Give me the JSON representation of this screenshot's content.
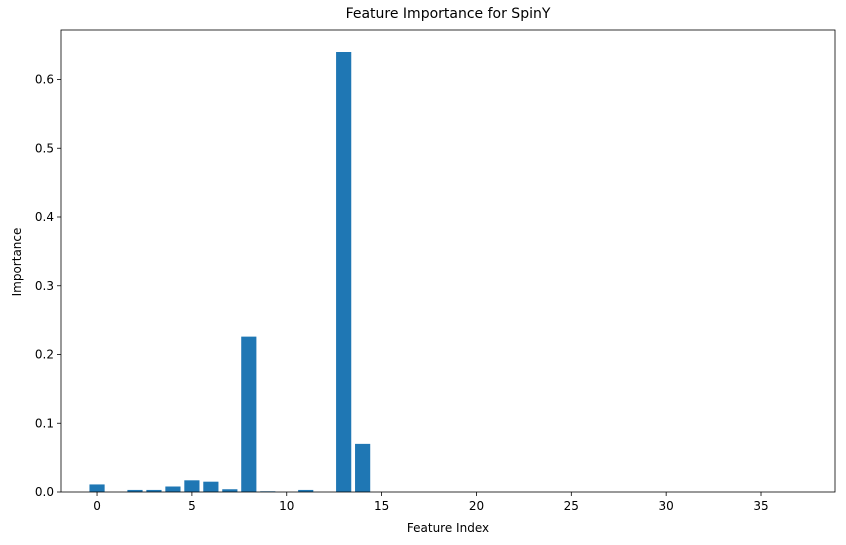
{
  "chart_data": {
    "type": "bar",
    "title": "Feature Importance for SpinY",
    "xlabel": "Feature Index",
    "ylabel": "Importance",
    "x": [
      0,
      1,
      2,
      3,
      4,
      5,
      6,
      7,
      8,
      9,
      10,
      11,
      12,
      13,
      14,
      15,
      16,
      17,
      18,
      19,
      20,
      21,
      22,
      23,
      24,
      25,
      26,
      27,
      28,
      29,
      30,
      31,
      32,
      33,
      34,
      35,
      36,
      37
    ],
    "values": [
      0.011,
      0.0,
      0.003,
      0.003,
      0.008,
      0.017,
      0.015,
      0.004,
      0.226,
      0.001,
      0.0,
      0.003,
      0.0,
      0.64,
      0.07,
      0.0,
      0.0,
      0.0,
      0.0,
      0.0,
      0.0,
      0.0,
      0.0,
      0.0,
      0.0,
      0.0,
      0.0,
      0.0,
      0.0,
      0.0,
      0.0,
      0.0,
      0.0,
      0.0,
      0.0,
      0.0,
      0.0,
      0.0
    ],
    "xlim": [
      -1.9,
      38.9
    ],
    "ylim": [
      0,
      0.672
    ],
    "xticks": [
      0,
      5,
      10,
      15,
      20,
      25,
      30,
      35
    ],
    "xtick_labels": [
      "0",
      "5",
      "10",
      "15",
      "20",
      "25",
      "30",
      "35"
    ],
    "yticks": [
      0.0,
      0.1,
      0.2,
      0.3,
      0.4,
      0.5,
      0.6
    ],
    "ytick_labels": [
      "0.0",
      "0.1",
      "0.2",
      "0.3",
      "0.4",
      "0.5",
      "0.6"
    ],
    "grid": false,
    "bar_color": "#1f77b4"
  }
}
